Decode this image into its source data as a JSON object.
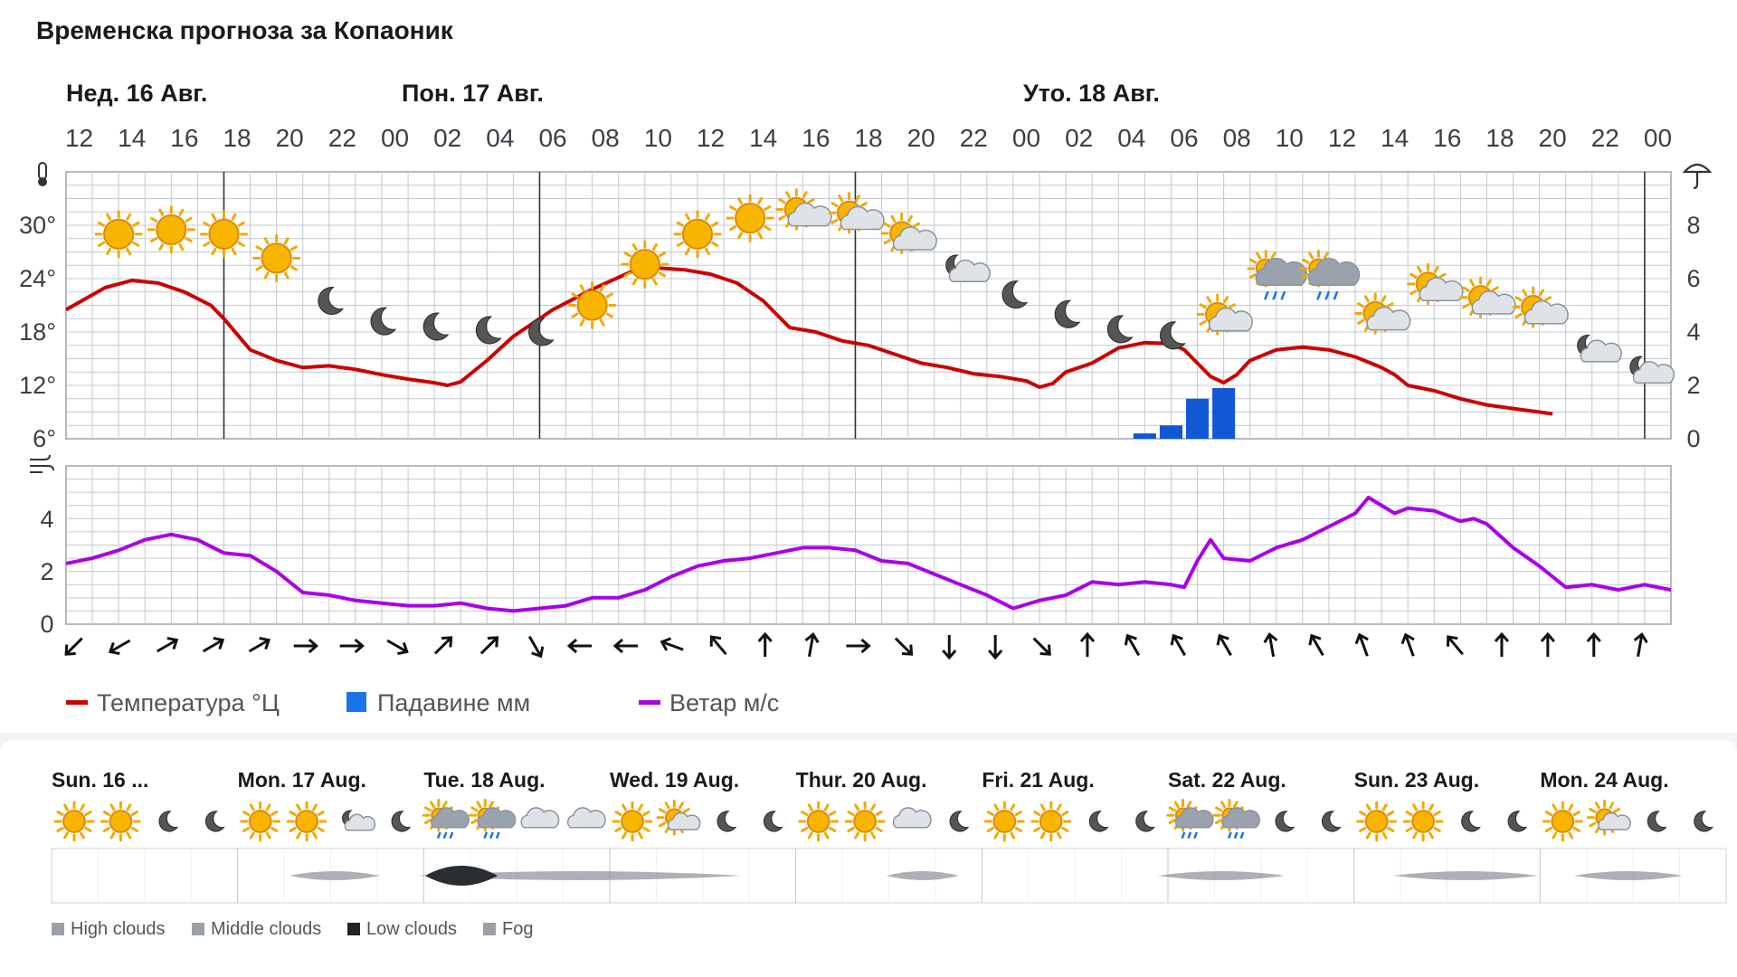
{
  "title": "Временска прогноза за Копаоник",
  "day_labels": [
    {
      "label": "Нед. 16 Авг."
    },
    {
      "label": "Пон. 17 Авг."
    },
    {
      "label": "Уто. 18 Авг."
    }
  ],
  "hour_labels": [
    "12",
    "14",
    "16",
    "18",
    "20",
    "22",
    "00",
    "02",
    "04",
    "06",
    "08",
    "10",
    "12",
    "14",
    "16",
    "18",
    "20",
    "22",
    "00",
    "02",
    "04",
    "06",
    "08",
    "10",
    "12",
    "14",
    "16",
    "18",
    "20",
    "22",
    "00"
  ],
  "chart_data": [
    {
      "type": "line",
      "name": "temperature-precipitation",
      "x_unit": "hours since Sun 16 Aug 12:00",
      "y_ticks_left": [
        "30°",
        "24°",
        "18°",
        "12°",
        "6°"
      ],
      "y_ticks_right": [
        "8",
        "6",
        "4",
        "2",
        "0"
      ],
      "ylim_left": [
        6,
        36
      ],
      "ylim_right": [
        0,
        10
      ],
      "temperature": [
        [
          0,
          20.5
        ],
        [
          3,
          23.0
        ],
        [
          5,
          23.8
        ],
        [
          7,
          23.5
        ],
        [
          9,
          22.5
        ],
        [
          11,
          21.0
        ],
        [
          12,
          19.5
        ],
        [
          14,
          16.0
        ],
        [
          16,
          14.8
        ],
        [
          18,
          14.0
        ],
        [
          20,
          14.2
        ],
        [
          22,
          13.8
        ],
        [
          24,
          13.2
        ],
        [
          26,
          12.7
        ],
        [
          28,
          12.3
        ],
        [
          29,
          12.0
        ],
        [
          30,
          12.4
        ],
        [
          32,
          14.8
        ],
        [
          34,
          17.5
        ],
        [
          37,
          20.5
        ],
        [
          40,
          22.8
        ],
        [
          43,
          24.8
        ],
        [
          45,
          25.2
        ],
        [
          47,
          25.0
        ],
        [
          49,
          24.5
        ],
        [
          51,
          23.5
        ],
        [
          53,
          21.5
        ],
        [
          55,
          18.5
        ],
        [
          57,
          18.0
        ],
        [
          59,
          17.0
        ],
        [
          61,
          16.5
        ],
        [
          63,
          15.5
        ],
        [
          65,
          14.5
        ],
        [
          67,
          14.0
        ],
        [
          69,
          13.3
        ],
        [
          71,
          13.0
        ],
        [
          73,
          12.5
        ],
        [
          74,
          11.8
        ],
        [
          75,
          12.2
        ],
        [
          76,
          13.5
        ],
        [
          78,
          14.5
        ],
        [
          80,
          16.2
        ],
        [
          82,
          16.8
        ],
        [
          84,
          16.7
        ],
        [
          85,
          16.0
        ],
        [
          86,
          14.5
        ],
        [
          87,
          13.0
        ],
        [
          88,
          12.3
        ],
        [
          89,
          13.2
        ],
        [
          90,
          14.8
        ],
        [
          92,
          16.0
        ],
        [
          94,
          16.3
        ],
        [
          96,
          16.0
        ],
        [
          98,
          15.2
        ],
        [
          100,
          14.0
        ],
        [
          101,
          13.2
        ],
        [
          102,
          12.0
        ],
        [
          104,
          11.4
        ],
        [
          106,
          10.5
        ],
        [
          108,
          9.8
        ],
        [
          110,
          9.4
        ],
        [
          112,
          9.0
        ],
        [
          113,
          8.8
        ]
      ],
      "precipitation_bars": [
        {
          "x": 82,
          "value": 0.2
        },
        {
          "x": 84,
          "value": 0.5
        },
        {
          "x": 86,
          "value": 1.5
        },
        {
          "x": 88,
          "value": 1.9
        }
      ],
      "weather_icons": [
        {
          "x": 2,
          "icon": "sun-icon"
        },
        {
          "x": 4,
          "icon": "sun-icon"
        },
        {
          "x": 6,
          "icon": "sun-icon"
        },
        {
          "x": 8,
          "icon": "sun-icon"
        },
        {
          "x": 10,
          "icon": "moon-icon"
        },
        {
          "x": 12,
          "icon": "moon-icon"
        },
        {
          "x": 14,
          "icon": "moon-icon"
        },
        {
          "x": 16,
          "icon": "moon-icon"
        },
        {
          "x": 18,
          "icon": "moon-icon"
        },
        {
          "x": 20,
          "icon": "sun-icon"
        },
        {
          "x": 22,
          "icon": "sun-icon"
        },
        {
          "x": 24,
          "icon": "sun-icon"
        },
        {
          "x": 26,
          "icon": "sun-icon"
        },
        {
          "x": 28,
          "icon": "sun-cloud-icon"
        },
        {
          "x": 30,
          "icon": "sun-cloud-icon"
        },
        {
          "x": 32,
          "icon": "sun-cloud-icon"
        },
        {
          "x": 34,
          "icon": "moon-cloud-icon"
        },
        {
          "x": 36,
          "icon": "moon-icon"
        },
        {
          "x": 38,
          "icon": "moon-icon"
        },
        {
          "x": 40,
          "icon": "moon-icon"
        },
        {
          "x": 42,
          "icon": "moon-icon"
        },
        {
          "x": 44,
          "icon": "sun-cloud-icon"
        },
        {
          "x": 46,
          "icon": "sun-rain-icon"
        },
        {
          "x": 48,
          "icon": "sun-rain-icon"
        },
        {
          "x": 50,
          "icon": "sun-cloud-icon"
        },
        {
          "x": 52,
          "icon": "sun-cloud-icon"
        },
        {
          "x": 54,
          "icon": "sun-cloud-icon"
        },
        {
          "x": 56,
          "icon": "sun-cloud-icon"
        },
        {
          "x": 58,
          "icon": "moon-cloud-icon"
        },
        {
          "x": 60,
          "icon": "moon-cloud-icon"
        }
      ],
      "weather_icon_temps": [
        [
          2,
          29
        ],
        [
          4,
          29.5
        ],
        [
          6,
          29
        ],
        [
          8,
          26.3
        ],
        [
          10,
          21.5
        ],
        [
          12,
          19.2
        ],
        [
          14,
          18.6
        ],
        [
          16,
          18.2
        ],
        [
          18,
          18.0
        ],
        [
          20,
          21.0
        ],
        [
          22,
          25.6
        ],
        [
          24,
          29.0
        ],
        [
          26,
          30.8
        ],
        [
          28,
          31.2
        ],
        [
          30,
          30.8
        ],
        [
          32,
          28.5
        ],
        [
          34,
          25.0
        ],
        [
          36,
          22.2
        ],
        [
          38,
          20.0
        ],
        [
          40,
          18.3
        ],
        [
          42,
          17.6
        ],
        [
          44,
          19.4
        ],
        [
          46,
          24.2
        ],
        [
          48,
          24.2
        ],
        [
          50,
          19.5
        ],
        [
          52,
          22.8
        ],
        [
          54,
          21.3
        ],
        [
          56,
          20.2
        ],
        [
          58,
          16.0
        ],
        [
          60,
          13.6
        ]
      ]
    },
    {
      "type": "line",
      "name": "wind",
      "y_ticks": [
        "4",
        "2",
        "0"
      ],
      "ylim": [
        0,
        6
      ],
      "wind": [
        [
          0,
          2.3
        ],
        [
          2,
          2.5
        ],
        [
          4,
          2.8
        ],
        [
          6,
          3.2
        ],
        [
          8,
          3.4
        ],
        [
          10,
          3.2
        ],
        [
          12,
          2.7
        ],
        [
          14,
          2.6
        ],
        [
          16,
          2.0
        ],
        [
          18,
          1.2
        ],
        [
          20,
          1.1
        ],
        [
          22,
          0.9
        ],
        [
          24,
          0.8
        ],
        [
          26,
          0.7
        ],
        [
          28,
          0.7
        ],
        [
          30,
          0.8
        ],
        [
          32,
          0.6
        ],
        [
          34,
          0.5
        ],
        [
          36,
          0.6
        ],
        [
          38,
          0.7
        ],
        [
          40,
          1.0
        ],
        [
          42,
          1.0
        ],
        [
          44,
          1.3
        ],
        [
          46,
          1.8
        ],
        [
          48,
          2.2
        ],
        [
          50,
          2.4
        ],
        [
          52,
          2.5
        ],
        [
          54,
          2.7
        ],
        [
          56,
          2.9
        ],
        [
          58,
          2.9
        ],
        [
          60,
          2.8
        ],
        [
          62,
          2.4
        ],
        [
          64,
          2.3
        ],
        [
          66,
          1.9
        ],
        [
          68,
          1.5
        ],
        [
          70,
          1.1
        ],
        [
          72,
          0.6
        ],
        [
          74,
          0.9
        ],
        [
          76,
          1.1
        ],
        [
          78,
          1.6
        ],
        [
          80,
          1.5
        ],
        [
          82,
          1.6
        ],
        [
          84,
          1.5
        ],
        [
          85,
          1.4
        ],
        [
          86,
          2.4
        ],
        [
          87,
          3.2
        ],
        [
          88,
          2.5
        ],
        [
          90,
          2.4
        ],
        [
          92,
          2.9
        ],
        [
          94,
          3.2
        ],
        [
          96,
          3.7
        ],
        [
          98,
          4.2
        ],
        [
          99,
          4.8
        ],
        [
          101,
          4.2
        ],
        [
          102,
          4.4
        ],
        [
          104,
          4.3
        ],
        [
          106,
          3.9
        ],
        [
          107,
          4.0
        ],
        [
          108,
          3.8
        ],
        [
          110,
          2.9
        ],
        [
          112,
          2.2
        ],
        [
          114,
          1.4
        ],
        [
          116,
          1.5
        ],
        [
          118,
          1.3
        ],
        [
          120,
          1.5
        ],
        [
          122,
          1.3
        ]
      ],
      "wind_direction_arrows_deg": [
        225,
        240,
        60,
        60,
        60,
        90,
        90,
        120,
        45,
        45,
        150,
        270,
        270,
        290,
        320,
        0,
        10,
        90,
        135,
        180,
        180,
        135,
        0,
        330,
        330,
        330,
        350,
        330,
        340,
        340,
        320,
        0,
        0,
        0,
        10
      ]
    }
  ],
  "legend": [
    {
      "label": "Температура °Ц",
      "color": "#cc0000",
      "shape": "line"
    },
    {
      "label": "Падавине мм",
      "color": "#1a73e8",
      "shape": "square"
    },
    {
      "label": "Ветар м/с",
      "color": "#a900e8",
      "shape": "line"
    }
  ],
  "bottom": {
    "days": [
      "Sun. 16 ...",
      "Mon. 17 Aug.",
      "Tue. 18 Aug.",
      "Wed. 19 Aug.",
      "Thur. 20 Aug.",
      "Fri. 21 Aug.",
      "Sat. 22 Aug.",
      "Sun. 23 Aug.",
      "Mon. 24 Aug."
    ],
    "icons": [
      "sun-icon",
      "sun-icon",
      "moon-icon",
      "moon-icon",
      "sun-icon",
      "sun-icon",
      "moon-cloud-icon",
      "moon-icon",
      "sun-rain-icon",
      "sun-rain-icon",
      "cloud-icon",
      "cloud-icon",
      "sun-icon",
      "sun-cloud-icon",
      "moon-icon",
      "moon-icon",
      "sun-icon",
      "sun-icon",
      "cloud-icon",
      "moon-icon",
      "sun-icon",
      "sun-icon",
      "moon-icon",
      "moon-icon",
      "sun-rain-icon",
      "sun-rain-icon",
      "moon-icon",
      "moon-icon",
      "sun-icon",
      "sun-icon",
      "moon-icon",
      "moon-icon",
      "sun-icon",
      "sun-cloud-icon",
      "moon-icon",
      "moon-icon"
    ],
    "legend": [
      "High clouds",
      "Middle clouds",
      "Low clouds",
      "Fog"
    ]
  }
}
